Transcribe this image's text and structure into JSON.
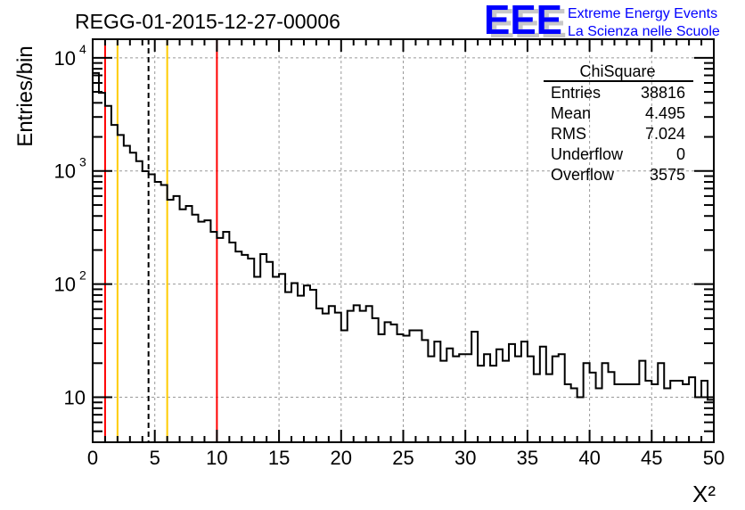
{
  "chart_data": {
    "type": "bar",
    "style": "step-histogram",
    "title": "REGG-01-2015-12-27-00006",
    "xlabel": "X²",
    "ylabel": "Entries/bin",
    "xlim": [
      0,
      50
    ],
    "ylim": [
      4,
      14600
    ],
    "yscale": "log",
    "grid": true,
    "bin_width": 0.5,
    "x_ticks": [
      "0",
      "5",
      "10",
      "15",
      "20",
      "25",
      "30",
      "35",
      "40",
      "45",
      "50"
    ],
    "y_ticks": [
      {
        "value": 10,
        "label": "10"
      },
      {
        "value": 100,
        "label": "10",
        "exp": "2"
      },
      {
        "value": 1000,
        "label": "10",
        "exp": "3"
      },
      {
        "value": 10000,
        "label": "10",
        "exp": "4"
      }
    ],
    "values": [
      7350,
      4900,
      3760,
      2550,
      2080,
      1670,
      1450,
      1220,
      995,
      935,
      800,
      752,
      557,
      600,
      458,
      490,
      411,
      356,
      366,
      290,
      256,
      290,
      233,
      194,
      181,
      168,
      116,
      184,
      157,
      116,
      123,
      85,
      102,
      79,
      97,
      89,
      61,
      55,
      64,
      56,
      39,
      58,
      65,
      58,
      64,
      50,
      36,
      46,
      44,
      36,
      35,
      39,
      39,
      32,
      23,
      31,
      21,
      27,
      23,
      24,
      24,
      38,
      19,
      24,
      19,
      26.5,
      21,
      29.5,
      23,
      31,
      23,
      16,
      28,
      16,
      23,
      24,
      13,
      12,
      10,
      20,
      16.5,
      12,
      20,
      16.7,
      13,
      13,
      13,
      13,
      21,
      14,
      13,
      20,
      12,
      14,
      14,
      13,
      15,
      10,
      14,
      9.5
    ],
    "vertical_lines": [
      {
        "x": 1,
        "color": "#ff0000",
        "style": "solid"
      },
      {
        "x": 2,
        "color": "#ffcc00",
        "style": "solid"
      },
      {
        "x": 4.495,
        "color": "#000000",
        "style": "dashed"
      },
      {
        "x": 6,
        "color": "#ffcc00",
        "style": "solid"
      },
      {
        "x": 10,
        "color": "#ff0000",
        "style": "solid"
      }
    ],
    "stats": {
      "name": "ChiSquare",
      "rows": [
        {
          "label": "Entries",
          "value": "38816"
        },
        {
          "label": "Mean",
          "value": "4.495"
        },
        {
          "label": "RMS",
          "value": "7.024"
        },
        {
          "label": "Underflow",
          "value": "0"
        },
        {
          "label": "Overflow",
          "value": "3575"
        }
      ]
    }
  },
  "logo": {
    "letters": "EEE",
    "line1": "Extreme Energy Events",
    "line2": "La Scienza nelle Scuole",
    "color": "#0000ff"
  }
}
